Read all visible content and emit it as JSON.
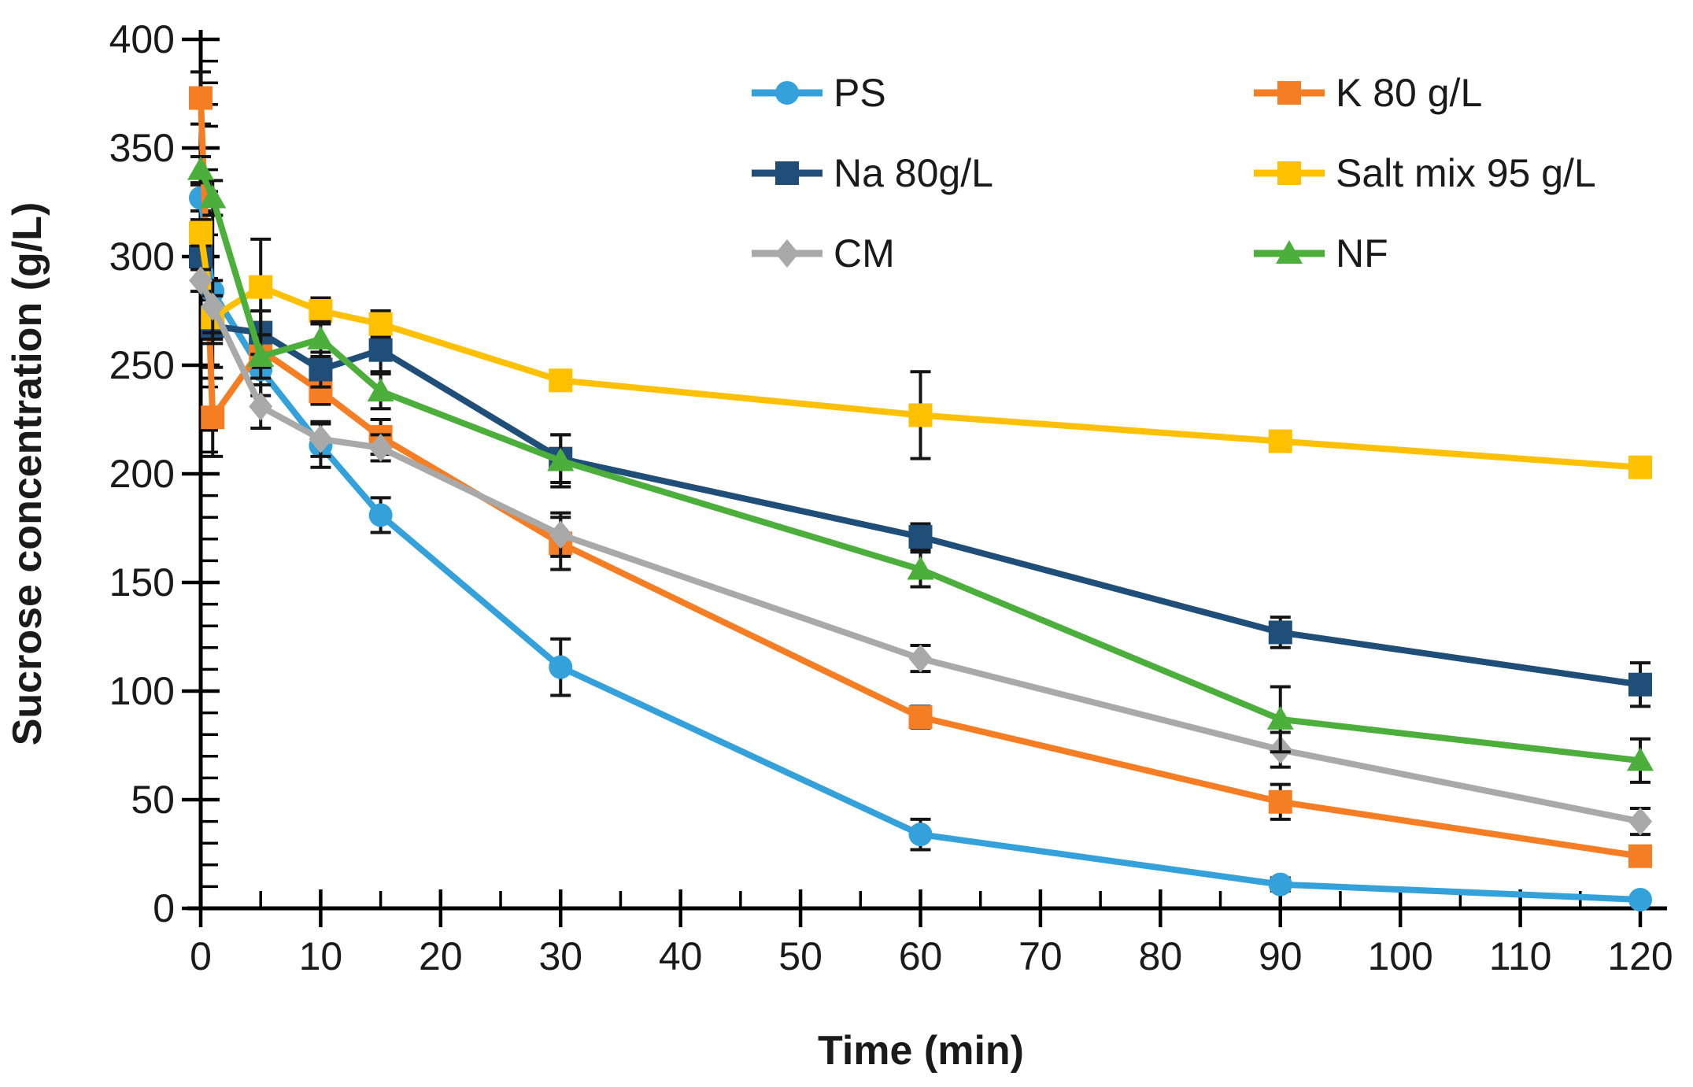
{
  "figure": {
    "background": "#ffffff",
    "axis_color": "#000000",
    "error_bar_color": "#141414"
  },
  "chart_data": {
    "type": "line",
    "title": "",
    "xlabel": "Time (min)",
    "ylabel": "Sucrose concentration (g/L)",
    "x": [
      0,
      1,
      5,
      10,
      15,
      30,
      60,
      90,
      120
    ],
    "xlim": [
      0,
      120
    ],
    "ylim": [
      0,
      400
    ],
    "x_major_tick": 10,
    "x_minor_tick": 5,
    "y_major_tick": 50,
    "y_minor_tick": 10,
    "grid": false,
    "legend_position": "inside-top-right",
    "legend_columns": 2,
    "series": [
      {
        "name": "PS",
        "color": "#35A1DB",
        "marker": "circle",
        "values": [
          327,
          284,
          248,
          213,
          181,
          111,
          34,
          11,
          4
        ],
        "errors": [
          6,
          35,
          12,
          10,
          8,
          13,
          7,
          3,
          2
        ]
      },
      {
        "name": "K 80 g/L",
        "color": "#F57E25",
        "marker": "square",
        "values": [
          373,
          226,
          257,
          238,
          217,
          168,
          88,
          49,
          24
        ],
        "errors": [
          12,
          18,
          8,
          6,
          8,
          12,
          5,
          8,
          4
        ]
      },
      {
        "name": "Na 80g/L",
        "color": "#1F4E79",
        "marker": "square",
        "values": [
          300,
          268,
          265,
          248,
          257,
          207,
          171,
          127,
          103
        ],
        "errors": [
          5,
          8,
          10,
          8,
          10,
          11,
          6,
          7,
          10
        ]
      },
      {
        "name": "Salt mix 95 g/L",
        "color": "#FFC000",
        "marker": "square",
        "values": [
          311,
          272,
          286,
          275,
          269,
          243,
          227,
          215,
          203
        ],
        "errors": [
          6,
          10,
          22,
          6,
          6,
          4,
          20,
          4,
          4
        ]
      },
      {
        "name": "CM",
        "color": "#A9A9A9",
        "marker": "diamond",
        "values": [
          289,
          277,
          231,
          216,
          212,
          172,
          115,
          73,
          40
        ],
        "errors": [
          5,
          12,
          10,
          8,
          6,
          10,
          6,
          8,
          6
        ]
      },
      {
        "name": "NF",
        "color": "#4CAE3B",
        "marker": "triangle",
        "values": [
          340,
          327,
          254,
          262,
          238,
          206,
          156,
          87,
          68
        ],
        "errors": [
          6,
          8,
          10,
          8,
          8,
          12,
          8,
          15,
          10
        ]
      }
    ]
  }
}
